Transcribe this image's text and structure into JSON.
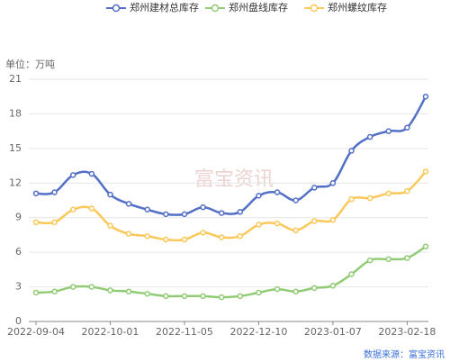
{
  "chart_data": {
    "type": "line",
    "unit": "单位：万吨",
    "source": "数据来源：富宝资讯",
    "watermark": "富宝资讯",
    "categories": [
      "2022-09-04",
      null,
      null,
      null,
      "2022-10-01",
      null,
      null,
      null,
      "2022-11-05",
      null,
      null,
      null,
      "2022-12-10",
      null,
      null,
      null,
      "2023-01-07",
      null,
      null,
      null,
      "2023-02-18",
      null
    ],
    "series": [
      {
        "name": "郑州建材总库存",
        "color": "#5470c6",
        "values": [
          11.1,
          11.2,
          12.7,
          12.8,
          11.0,
          10.2,
          9.7,
          9.3,
          9.3,
          9.9,
          9.4,
          9.5,
          10.9,
          11.2,
          10.5,
          11.6,
          12.0,
          14.8,
          16.0,
          16.5,
          16.8,
          19.5
        ]
      },
      {
        "name": "郑州盘线库存",
        "color": "#91cc75",
        "values": [
          2.5,
          2.6,
          3.0,
          3.0,
          2.7,
          2.6,
          2.4,
          2.2,
          2.2,
          2.2,
          2.1,
          2.2,
          2.5,
          2.8,
          2.6,
          2.9,
          3.1,
          4.1,
          5.3,
          5.4,
          5.5,
          6.5
        ]
      },
      {
        "name": "郑州螺纹库存",
        "color": "#fac858",
        "values": [
          8.6,
          8.6,
          9.7,
          9.8,
          8.3,
          7.6,
          7.4,
          7.1,
          7.1,
          7.7,
          7.3,
          7.4,
          8.4,
          8.5,
          7.9,
          8.7,
          8.8,
          10.6,
          10.7,
          11.1,
          11.3,
          13.0
        ]
      }
    ],
    "ylim": [
      0,
      21
    ],
    "yticks": [
      0,
      3,
      6,
      9,
      12,
      15,
      18,
      21
    ],
    "grid": true
  }
}
